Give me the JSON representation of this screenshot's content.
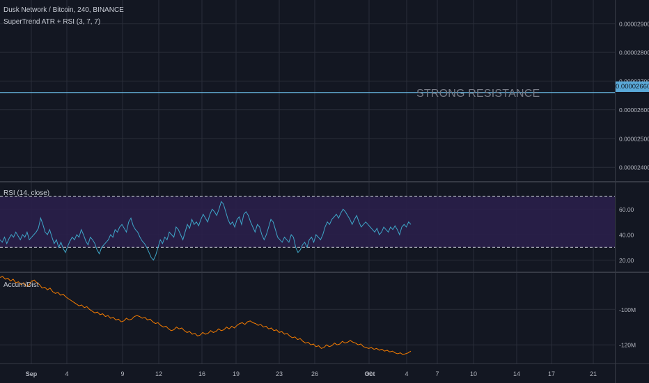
{
  "header": {
    "symbol_title": "Dusk Network / Bitcoin, 240, BINANCE",
    "indicator_title": "SuperTrend ATR + RSI (3, 7, 7)"
  },
  "annotations": {
    "strong_resistance": "STRONG RESISTANCE",
    "resistance_level_tag": "0.00002660"
  },
  "colors": {
    "background": "#131722",
    "grid": "#2a2e39",
    "resistance_line": "#6ec3f0",
    "rsi_line": "#3ea6c8",
    "rsi_band": "#2a1f4a",
    "ad_line": "#f57c00",
    "text": "#b2b5be"
  },
  "chart_data": [
    {
      "type": "line",
      "title": "Dusk Network / Bitcoin, 240, BINANCE",
      "subtitle": "SuperTrend ATR + RSI (3, 7, 7)",
      "yticks": [
        "0.00002900",
        "0.00002800",
        "0.00002700",
        "0.00002600",
        "0.00002500",
        "0.00002400"
      ],
      "ylim": [
        2.352e-05,
        2.982e-05
      ],
      "horizontal_lines": [
        {
          "value": 2.66e-05,
          "label": "STRONG RESISTANCE"
        }
      ],
      "series": []
    },
    {
      "type": "line",
      "title": "RSI (14, close)",
      "yticks": [
        "60.00",
        "40.00",
        "20.00"
      ],
      "ylim": [
        11,
        81
      ],
      "band": [
        30,
        70
      ],
      "series": [
        {
          "values": [
            36,
            34,
            38,
            33,
            37,
            40,
            38,
            42,
            39,
            36,
            40,
            38,
            42,
            36,
            38,
            40,
            42,
            45,
            53,
            48,
            42,
            40,
            44,
            38,
            33,
            36,
            30,
            34,
            29,
            26,
            31,
            35,
            38,
            36,
            40,
            38,
            44,
            40,
            35,
            32,
            38,
            36,
            33,
            28,
            25,
            30,
            32,
            34,
            36,
            40,
            38,
            44,
            42,
            46,
            48,
            45,
            42,
            50,
            53,
            47,
            44,
            42,
            38,
            35,
            33,
            30,
            26,
            22,
            20,
            24,
            30,
            36,
            33,
            38,
            36,
            42,
            40,
            38,
            46,
            44,
            40,
            36,
            42,
            48,
            45,
            52,
            48,
            50,
            47,
            52,
            56,
            53,
            50,
            56,
            60,
            58,
            55,
            60,
            66,
            64,
            58,
            52,
            48,
            50,
            46,
            52,
            54,
            48,
            56,
            58,
            55,
            50,
            46,
            42,
            48,
            46,
            40,
            36,
            40,
            46,
            52,
            50,
            44,
            38,
            36,
            34,
            38,
            36,
            34,
            40,
            38,
            30,
            26,
            28,
            32,
            34,
            30,
            36,
            38,
            34,
            40,
            38,
            36,
            40,
            46,
            50,
            48,
            52,
            54,
            56,
            53,
            57,
            60,
            58,
            55,
            52,
            48,
            52,
            55,
            50,
            46,
            48,
            50,
            48,
            46,
            44,
            42,
            45,
            40,
            42,
            46,
            44,
            42,
            46,
            44,
            47,
            44,
            40,
            46,
            48,
            46,
            50,
            48
          ]
        }
      ]
    },
    {
      "type": "line",
      "title": "Accum/Dist",
      "yticks": [
        "-100M",
        "-120M"
      ],
      "ylim": [
        -130.5,
        -79.5
      ],
      "series": [
        {
          "values": [
            -82,
            -81.5,
            -83,
            -82.5,
            -84,
            -83,
            -85,
            -84.5,
            -86,
            -85,
            -87,
            -86.5,
            -84,
            -83.5,
            -85,
            -86,
            -88,
            -87.5,
            -89,
            -88,
            -90,
            -91,
            -90.5,
            -92,
            -91.5,
            -93,
            -94,
            -95,
            -96,
            -97,
            -98,
            -97.5,
            -99,
            -98.5,
            -100,
            -101,
            -102,
            -101.5,
            -103,
            -102.5,
            -104,
            -103.5,
            -105,
            -104.5,
            -106,
            -105.5,
            -107,
            -106.5,
            -105,
            -106,
            -105.5,
            -104,
            -103.5,
            -104,
            -105,
            -104.5,
            -106,
            -105.5,
            -107,
            -108,
            -107.5,
            -109,
            -110,
            -109.5,
            -111,
            -112,
            -111.5,
            -110,
            -111,
            -110.5,
            -112,
            -113,
            -112.5,
            -114,
            -113.5,
            -115,
            -114.5,
            -113,
            -114,
            -113.5,
            -112,
            -113,
            -112.5,
            -111,
            -112,
            -111.5,
            -110,
            -111,
            -109.5,
            -110.5,
            -109,
            -108,
            -107.5,
            -108.5,
            -107,
            -106.5,
            -107.5,
            -108,
            -109,
            -108.5,
            -110,
            -109.5,
            -111,
            -110.5,
            -112,
            -111.5,
            -113,
            -112.5,
            -114,
            -113.5,
            -115,
            -116,
            -115.5,
            -117,
            -116.5,
            -118,
            -119,
            -118.5,
            -120,
            -119.5,
            -121,
            -120.5,
            -122,
            -121.5,
            -120,
            -121,
            -120.5,
            -119,
            -120,
            -119.5,
            -118,
            -119,
            -118.5,
            -117.5,
            -118.5,
            -119,
            -120,
            -119.5,
            -121,
            -121.5,
            -122,
            -121.5,
            -122.5,
            -122,
            -123,
            -122.5,
            -123.5,
            -123,
            -124,
            -123.5,
            -124.5,
            -125,
            -124.5,
            -125.5,
            -125,
            -124.5,
            -123.5
          ]
        }
      ]
    }
  ],
  "x_axis": {
    "labels": [
      {
        "text": "Sep",
        "bold": true
      },
      {
        "text": "4"
      },
      {
        "text": "9"
      },
      {
        "text": "12"
      },
      {
        "text": "16"
      },
      {
        "text": "19"
      },
      {
        "text": "23"
      },
      {
        "text": "26"
      },
      {
        "text": "30"
      },
      {
        "text": "Oct",
        "bold": true
      },
      {
        "text": "4"
      },
      {
        "text": "7"
      },
      {
        "text": "10"
      },
      {
        "text": "14"
      },
      {
        "text": "17"
      },
      {
        "text": "21"
      }
    ]
  }
}
